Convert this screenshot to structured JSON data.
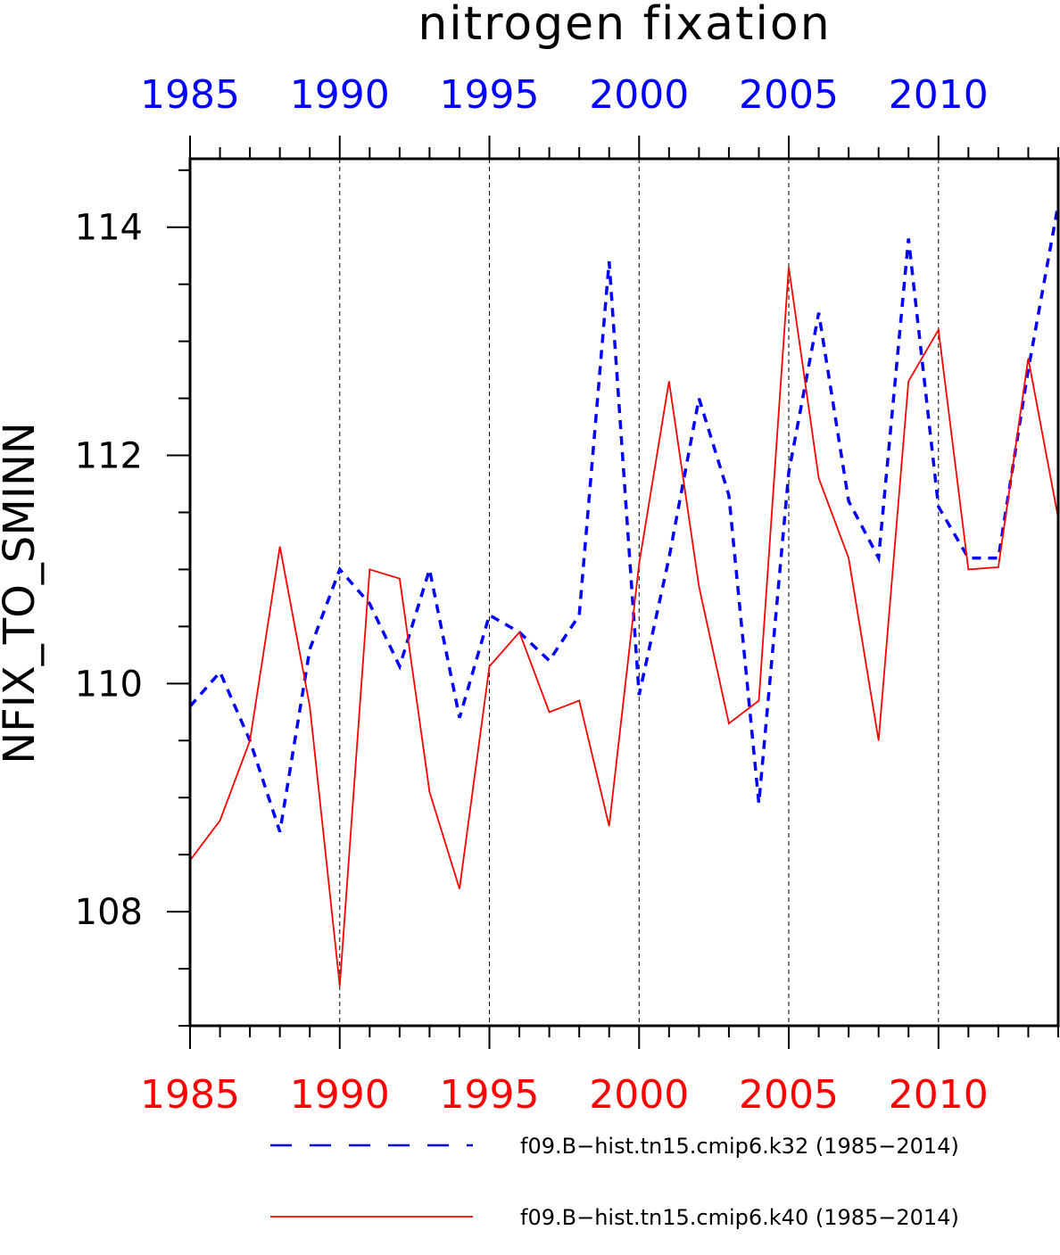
{
  "chart_data": {
    "type": "line",
    "title": "nitrogen fixation",
    "ylabel": "NFIX_TO_SMINN",
    "xlabel": "",
    "xlim": [
      1985,
      2014
    ],
    "ylim": [
      107,
      114.6
    ],
    "yticks": [
      108,
      110,
      112,
      114
    ],
    "xtick_labels": [
      "1985",
      "1990",
      "1995",
      "2000",
      "2005",
      "2010"
    ],
    "xticks": [
      1985,
      1990,
      1995,
      2000,
      2005,
      2010
    ],
    "grid": "vertical dashed at major x ticks",
    "legend_position": "bottom",
    "x": [
      1985,
      1986,
      1987,
      1988,
      1989,
      1990,
      1991,
      1992,
      1993,
      1994,
      1995,
      1996,
      1997,
      1998,
      1999,
      2000,
      2001,
      2002,
      2003,
      2004,
      2005,
      2006,
      2007,
      2008,
      2009,
      2010,
      2011,
      2012,
      2013,
      2014
    ],
    "series": [
      {
        "name": "f09.B−hist.tn15.cmip6.k32 (1985−2014)",
        "color": "#0000ff",
        "style": "dashed",
        "values": [
          109.8,
          110.1,
          109.5,
          108.7,
          110.3,
          111.0,
          110.7,
          110.15,
          111.0,
          109.7,
          110.6,
          110.45,
          110.2,
          110.6,
          113.7,
          109.9,
          111.1,
          112.5,
          111.65,
          108.95,
          111.85,
          113.25,
          111.6,
          111.1,
          113.9,
          111.55,
          111.1,
          111.1,
          112.75,
          114.2
        ]
      },
      {
        "name": "f09.B−hist.tn15.cmip6.k40 (1985−2014)",
        "color": "#ff0000",
        "style": "solid",
        "values": [
          108.45,
          108.8,
          109.5,
          111.2,
          109.8,
          107.35,
          111.0,
          110.92,
          109.05,
          108.2,
          110.15,
          110.45,
          109.75,
          109.85,
          108.75,
          111.05,
          112.65,
          110.85,
          109.65,
          109.85,
          113.65,
          111.8,
          111.1,
          109.5,
          112.65,
          113.1,
          111.0,
          111.02,
          112.85,
          111.45
        ]
      }
    ]
  }
}
